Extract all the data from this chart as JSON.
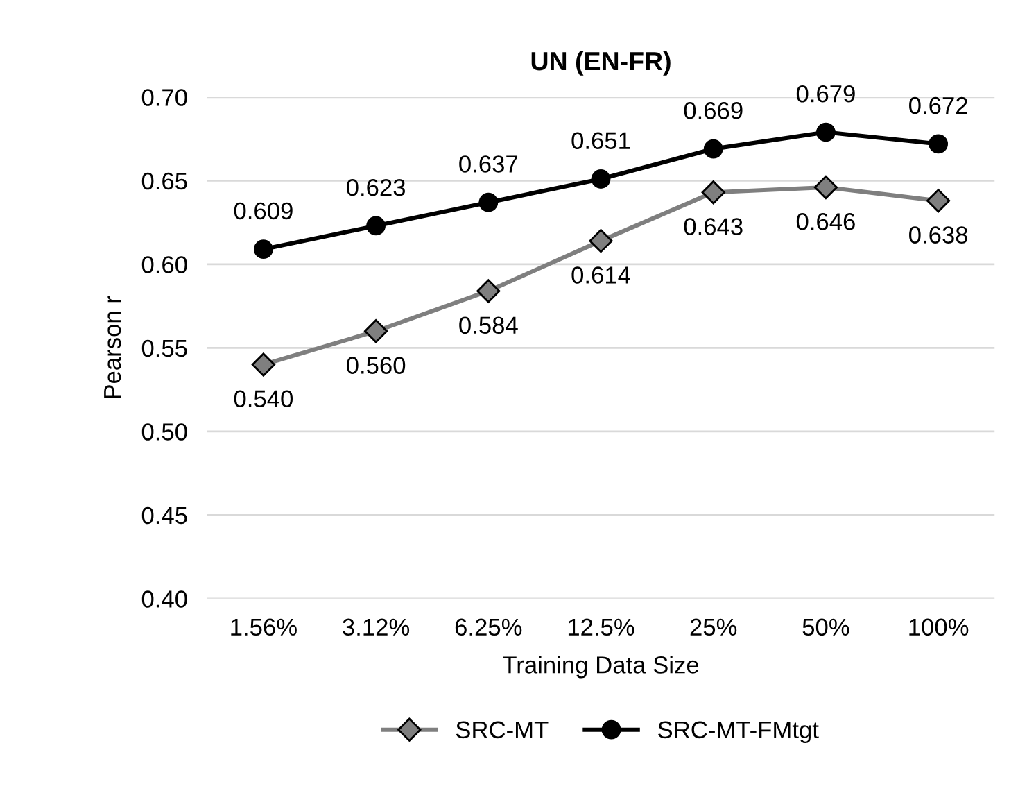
{
  "chart_data": {
    "type": "line",
    "title": "UN (EN-FR)",
    "xlabel": "Training Data Size",
    "ylabel": "Pearson r",
    "categories": [
      "1.56%",
      "3.12%",
      "6.25%",
      "12.5%",
      "25%",
      "50%",
      "100%"
    ],
    "series": [
      {
        "name": "SRC-MT",
        "color": "#7f7f7f",
        "marker": "diamond",
        "values": [
          0.54,
          0.56,
          0.584,
          0.614,
          0.643,
          0.646,
          0.638
        ],
        "value_labels": [
          "0.540",
          "0.560",
          "0.584",
          "0.614",
          "0.643",
          "0.646",
          "0.638"
        ]
      },
      {
        "name": "SRC-MT-FMtgt",
        "color": "#000000",
        "marker": "circle",
        "values": [
          0.609,
          0.623,
          0.637,
          0.651,
          0.669,
          0.679,
          0.672
        ],
        "value_labels": [
          "0.609",
          "0.623",
          "0.637",
          "0.651",
          "0.669",
          "0.679",
          "0.672"
        ]
      }
    ],
    "ylim": [
      0.4,
      0.7
    ],
    "yticks": [
      "0.40",
      "0.45",
      "0.50",
      "0.55",
      "0.60",
      "0.65",
      "0.70"
    ],
    "grid": "y",
    "legend": "bottom",
    "line_style": "solid"
  }
}
